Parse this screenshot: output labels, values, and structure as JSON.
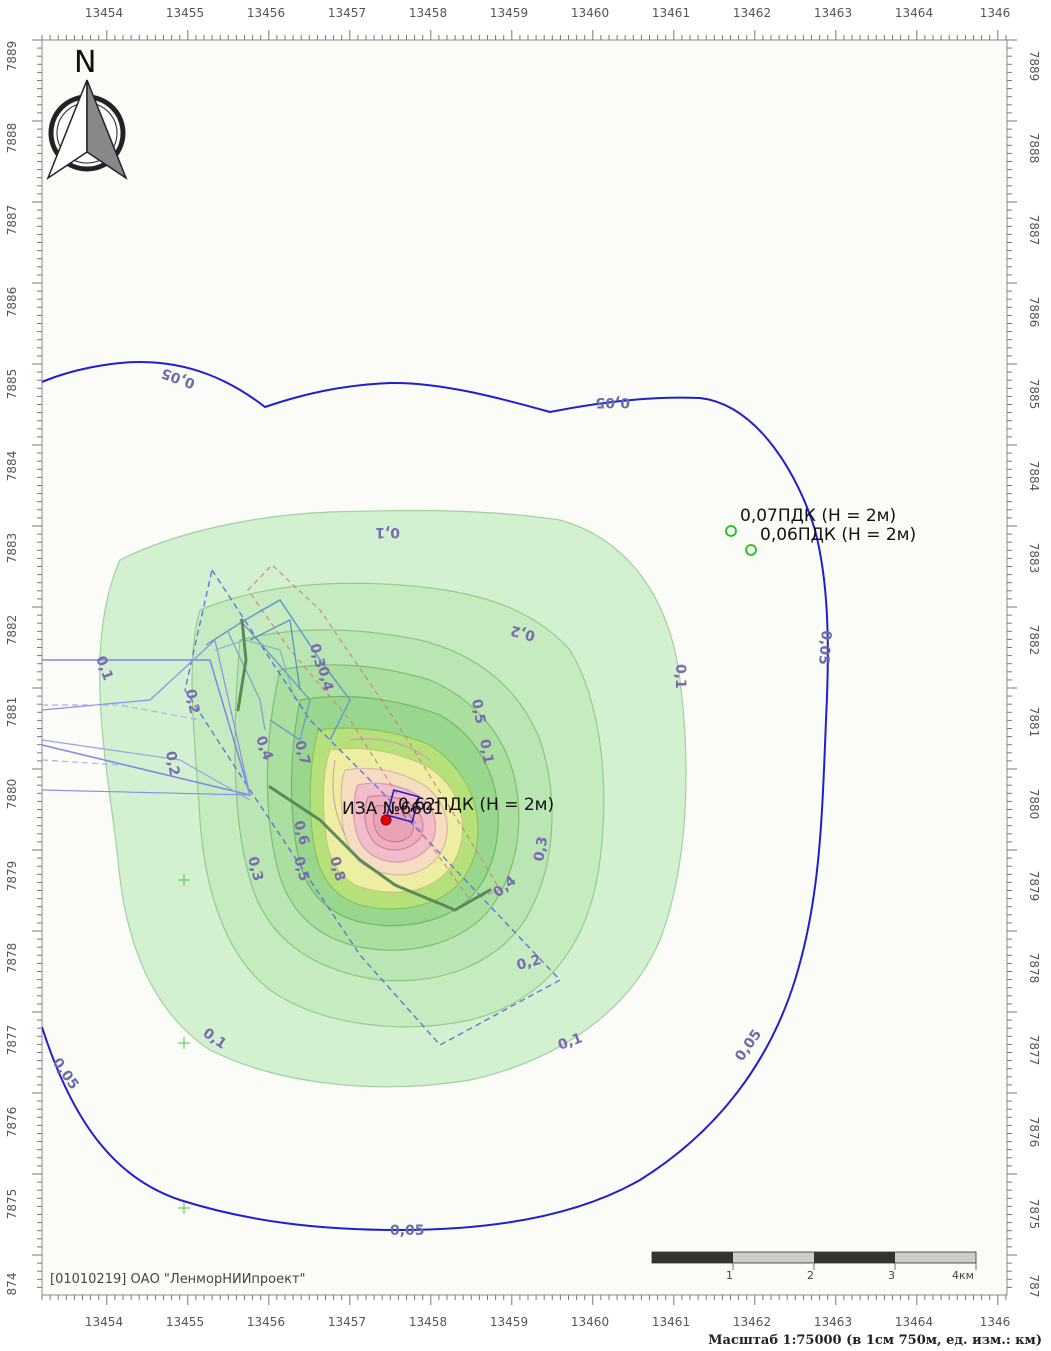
{
  "map": {
    "x_ticks": [
      "13454",
      "13455",
      "13456",
      "13457",
      "13458",
      "13459",
      "13460",
      "13461",
      "13462",
      "13463",
      "13464",
      "1346"
    ],
    "y_ticks": [
      "7889",
      "7888",
      "7887",
      "7886",
      "7885",
      "7884",
      "7883",
      "7882",
      "7881",
      "7880",
      "7879",
      "7878",
      "7877",
      "7876",
      "7875",
      "874"
    ],
    "y_ticks_right": [
      "7889",
      "7888",
      "7887",
      "7886",
      "7885",
      "7884",
      "7883",
      "7882",
      "7881",
      "7880",
      "7879",
      "7878",
      "7877",
      "7876",
      "7875",
      "787"
    ],
    "north_label": "N",
    "organization": "[01010219] ОАО \"ЛенморНИИпроект\"",
    "scale_caption": "Масштаб 1:75000 (в 1см 750м, ед. изм.: км)",
    "scalebar_labels": [
      "1",
      "2",
      "3",
      "4км"
    ],
    "contour_labels": {
      "outer": [
        "0,05",
        "0,05",
        "0,05",
        "0,05",
        "0,05",
        "0,05"
      ],
      "inner": [
        "0,1",
        "0,1",
        "0,1",
        "0,1",
        "0,1",
        "0,2",
        "0,2",
        "0,2",
        "0,3",
        "0,3",
        "0,4",
        "0,4",
        "0,5",
        "0,6",
        "0,7",
        "0,8",
        "0,3",
        "0,5",
        "0,4",
        "0,2",
        "0,1"
      ]
    },
    "points": [
      {
        "label": "0,07ПДК (H = 2м)"
      },
      {
        "label": "0,06ПДК (H = 2м)"
      },
      {
        "label": "0,62ПДК (H = 2м)"
      },
      {
        "label": "ИЗА №6601"
      }
    ],
    "colors": {
      "outer_isoline": "#1f1fd0",
      "green_fill": "#c8ecc4",
      "yellow_core": "#f6f2a8",
      "pink_core": "#f2b8c6",
      "point_marker": "#22c022",
      "source_marker": "#e00000"
    }
  }
}
